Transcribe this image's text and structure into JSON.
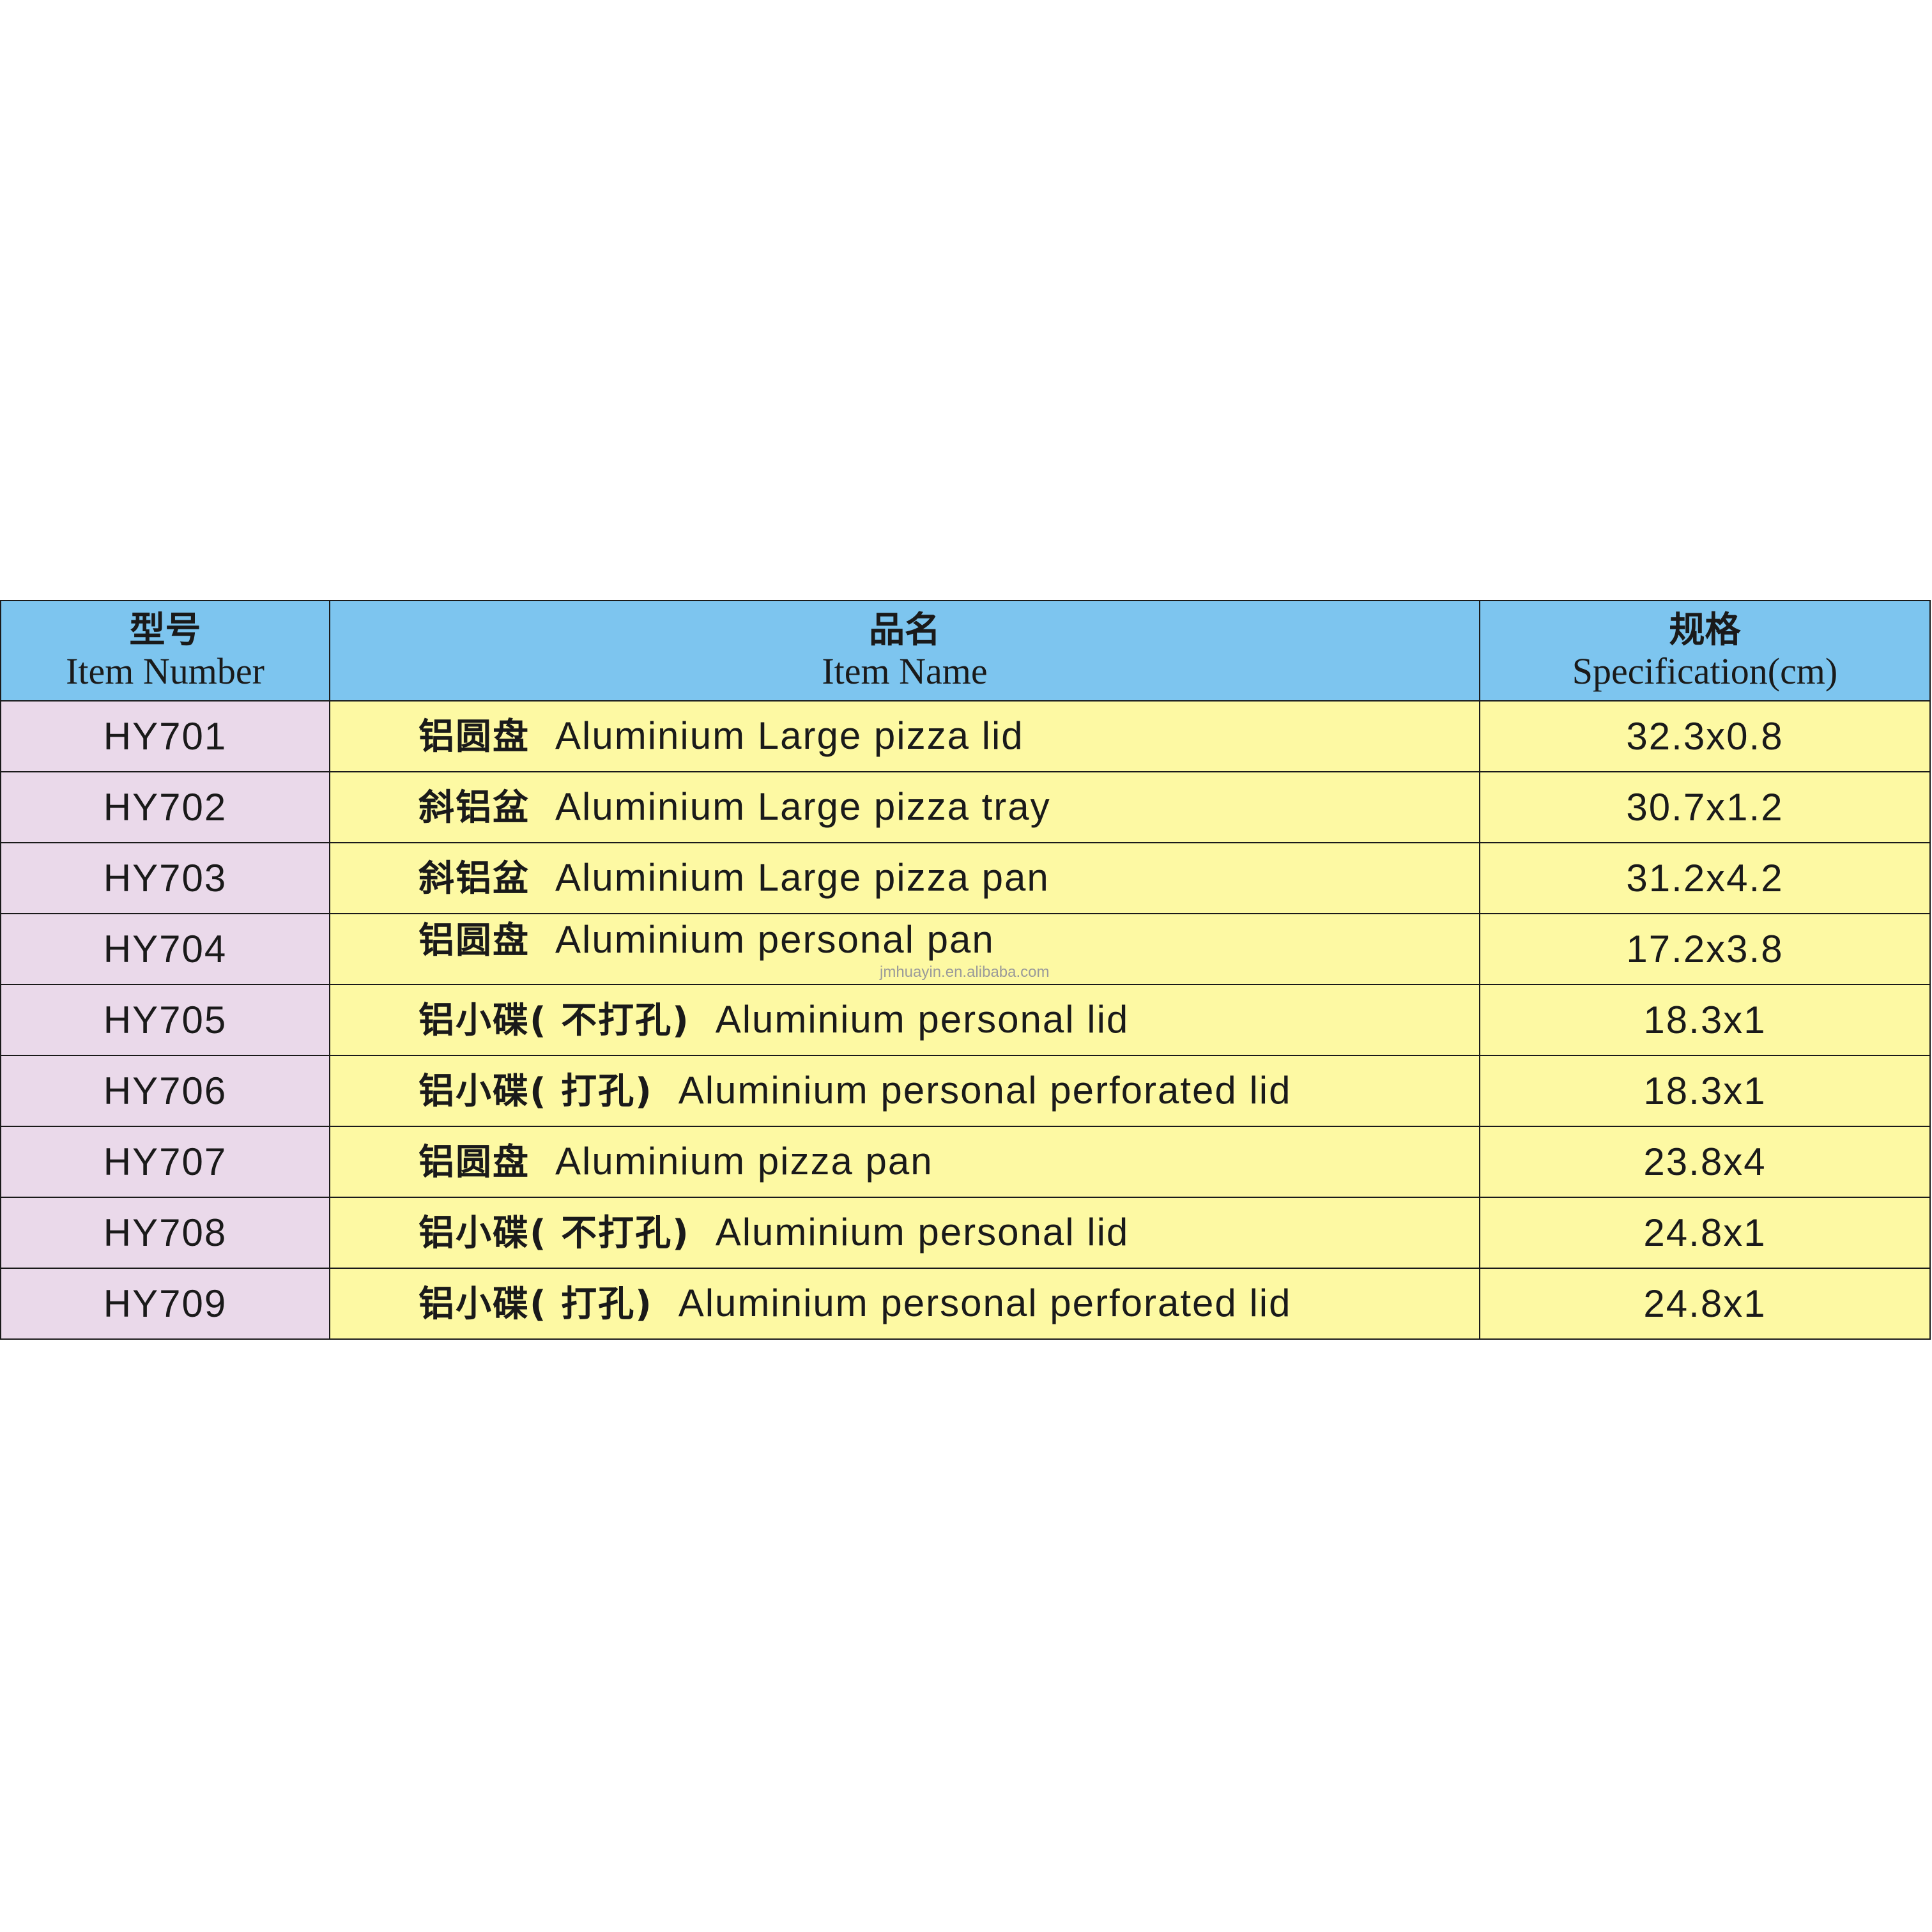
{
  "headers": [
    {
      "cn": "型号",
      "en": "Item Number"
    },
    {
      "cn": "品名",
      "en": "Item Name"
    },
    {
      "cn": "规格",
      "en": "Specification(cm)"
    }
  ],
  "rows": [
    {
      "item": "HY701",
      "name_cn": "铝圆盘",
      "name_en": "Aluminium Large pizza lid",
      "spec": "32.3x0.8"
    },
    {
      "item": "HY702",
      "name_cn": "斜铝盆",
      "name_en": "Aluminium Large pizza tray",
      "spec": "30.7x1.2"
    },
    {
      "item": "HY703",
      "name_cn": "斜铝盆",
      "name_en": "Aluminium Large pizza pan",
      "spec": "31.2x4.2"
    },
    {
      "item": "HY704",
      "name_cn": "铝圆盘",
      "name_en": "Aluminium personal pan",
      "spec": "17.2x3.8"
    },
    {
      "item": "HY705",
      "name_cn": "铝小碟( 不打孔)",
      "name_en": "Aluminium personal lid",
      "spec": "18.3x1"
    },
    {
      "item": "HY706",
      "name_cn": "铝小碟( 打孔)",
      "name_en": "Aluminium personal perforated lid",
      "spec": "18.3x1"
    },
    {
      "item": "HY707",
      "name_cn": "铝圆盘",
      "name_en": "Aluminium pizza pan",
      "spec": "23.8x4"
    },
    {
      "item": "HY708",
      "name_cn": "铝小碟( 不打孔)",
      "name_en": "Aluminium personal lid",
      "spec": "24.8x1"
    },
    {
      "item": "HY709",
      "name_cn": "铝小碟( 打孔)",
      "name_en": "Aluminium personal perforated lid",
      "spec": "24.8x1"
    }
  ],
  "watermark": "jmhuayin.en.alibaba.com",
  "colors": {
    "header": "#7dc5ef",
    "item_col": "#ead9ea",
    "body": "#fdf9a3"
  }
}
